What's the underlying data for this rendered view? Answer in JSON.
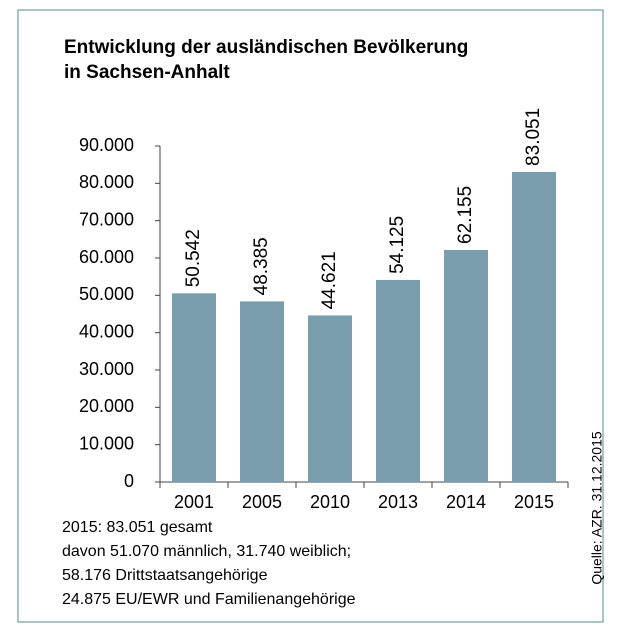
{
  "chart_data": {
    "type": "bar",
    "title": [
      "Entwicklung der ausländischen Bevölkerung",
      "in Sachsen-Anhalt"
    ],
    "categories": [
      "2001",
      "2005",
      "2010",
      "2013",
      "2014",
      "2015"
    ],
    "values": [
      50542,
      48385,
      44621,
      54125,
      62155,
      83051
    ],
    "value_labels": [
      "50.542",
      "48.385",
      "44.621",
      "54.125",
      "62.155",
      "83.051"
    ],
    "color": "#7b9eae",
    "ylim": [
      0,
      90000
    ],
    "yticks": [
      0,
      {
        "value": 10000,
        "label": "10.000"
      },
      {
        "value": 20000,
        "label": "20.000"
      },
      {
        "value": 30000,
        "label": "30.000"
      },
      {
        "value": 40000,
        "label": "40.000"
      },
      {
        "value": 50000,
        "label": "50.000"
      },
      {
        "value": 60000,
        "label": "60.000"
      },
      {
        "value": 70000,
        "label": "70.000"
      },
      {
        "value": 80000,
        "label": "80.000"
      },
      {
        "value": 90000,
        "label": "90.000"
      }
    ],
    "grid": false,
    "notes": [
      "2015: 83.051 gesamt",
      "davon 51.070 männlich, 31.740 weiblich;",
      "58.176 Drittstaatsangehörige",
      "24.875 EU/EWR und Familienangehörige"
    ],
    "source": "Quelle: AZR. 31.12.2015"
  }
}
